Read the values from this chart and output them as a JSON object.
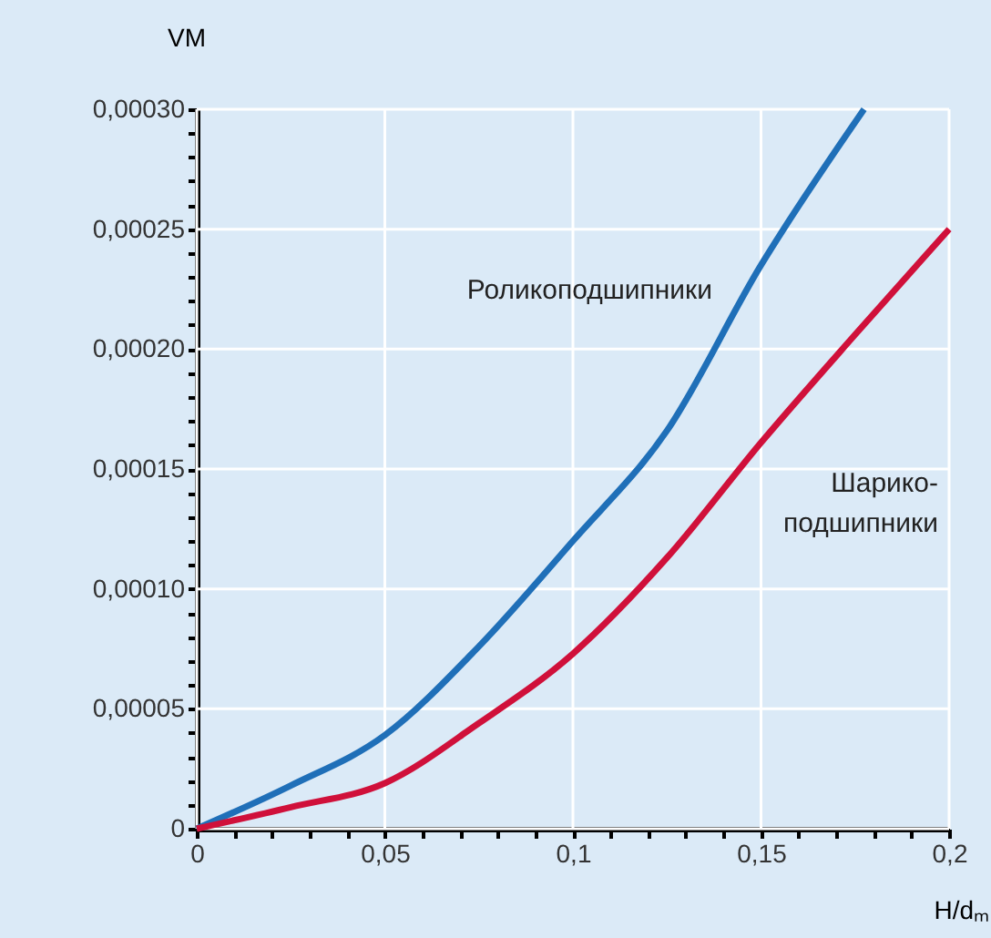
{
  "chart_data": {
    "type": "line",
    "xlabel": "H/dₘ",
    "ylabel": "VM",
    "series": [
      {
        "name": "Роликоподшипники",
        "color": "#1f6fb8",
        "x": [
          0,
          0.025,
          0.05,
          0.075,
          0.1,
          0.125,
          0.15,
          0.1774
        ],
        "values": [
          0,
          1.8e-05,
          3.9e-05,
          7.6e-05,
          0.00012,
          0.000166,
          0.000235,
          0.0003
        ]
      },
      {
        "name": "Шарико-\nподшипники",
        "color": "#d0103a",
        "x": [
          0,
          0.025,
          0.05,
          0.075,
          0.1,
          0.125,
          0.15,
          0.175,
          0.2
        ],
        "values": [
          0,
          9e-06,
          1.9e-05,
          4.4e-05,
          7.3e-05,
          0.000113,
          0.000161,
          0.000206,
          0.00025
        ]
      }
    ],
    "xlim": [
      0,
      0.2
    ],
    "ylim": [
      0,
      0.0003
    ],
    "xticks": [
      {
        "value": 0,
        "label": "0"
      },
      {
        "value": 0.01,
        "label": null
      },
      {
        "value": 0.02,
        "label": null
      },
      {
        "value": 0.03,
        "label": null
      },
      {
        "value": 0.04,
        "label": null
      },
      {
        "value": 0.05,
        "label": "0,05"
      },
      {
        "value": 0.06,
        "label": null
      },
      {
        "value": 0.07,
        "label": null
      },
      {
        "value": 0.08,
        "label": null
      },
      {
        "value": 0.09,
        "label": null
      },
      {
        "value": 0.1,
        "label": "0,1"
      },
      {
        "value": 0.11,
        "label": null
      },
      {
        "value": 0.12,
        "label": null
      },
      {
        "value": 0.13,
        "label": null
      },
      {
        "value": 0.14,
        "label": null
      },
      {
        "value": 0.15,
        "label": "0,15"
      },
      {
        "value": 0.16,
        "label": null
      },
      {
        "value": 0.17,
        "label": null
      },
      {
        "value": 0.18,
        "label": null
      },
      {
        "value": 0.19,
        "label": null
      },
      {
        "value": 0.2,
        "label": "0,2"
      }
    ],
    "yticks": [
      {
        "value": 0,
        "label": "0"
      },
      {
        "value": 1e-05,
        "label": null
      },
      {
        "value": 2e-05,
        "label": null
      },
      {
        "value": 3e-05,
        "label": null
      },
      {
        "value": 4e-05,
        "label": null
      },
      {
        "value": 5e-05,
        "label": "0,00005"
      },
      {
        "value": 6e-05,
        "label": null
      },
      {
        "value": 7e-05,
        "label": null
      },
      {
        "value": 8e-05,
        "label": null
      },
      {
        "value": 9e-05,
        "label": null
      },
      {
        "value": 0.0001,
        "label": "0,00010"
      },
      {
        "value": 0.00011,
        "label": null
      },
      {
        "value": 0.00012,
        "label": null
      },
      {
        "value": 0.00013,
        "label": null
      },
      {
        "value": 0.00014,
        "label": null
      },
      {
        "value": 0.00015,
        "label": "0,00015"
      },
      {
        "value": 0.00016,
        "label": null
      },
      {
        "value": 0.00017,
        "label": null
      },
      {
        "value": 0.00018,
        "label": null
      },
      {
        "value": 0.00019,
        "label": null
      },
      {
        "value": 0.0002,
        "label": "0,00020"
      },
      {
        "value": 0.00021,
        "label": null
      },
      {
        "value": 0.00022,
        "label": null
      },
      {
        "value": 0.00023,
        "label": null
      },
      {
        "value": 0.00024,
        "label": null
      },
      {
        "value": 0.00025,
        "label": "0,00025"
      },
      {
        "value": 0.00026,
        "label": null
      },
      {
        "value": 0.00027,
        "label": null
      },
      {
        "value": 0.00028,
        "label": null
      },
      {
        "value": 0.00029,
        "label": null
      },
      {
        "value": 0.0003,
        "label": "0,00030"
      }
    ],
    "grid": true,
    "legend": false,
    "marker": "none",
    "line_style": "solid"
  }
}
